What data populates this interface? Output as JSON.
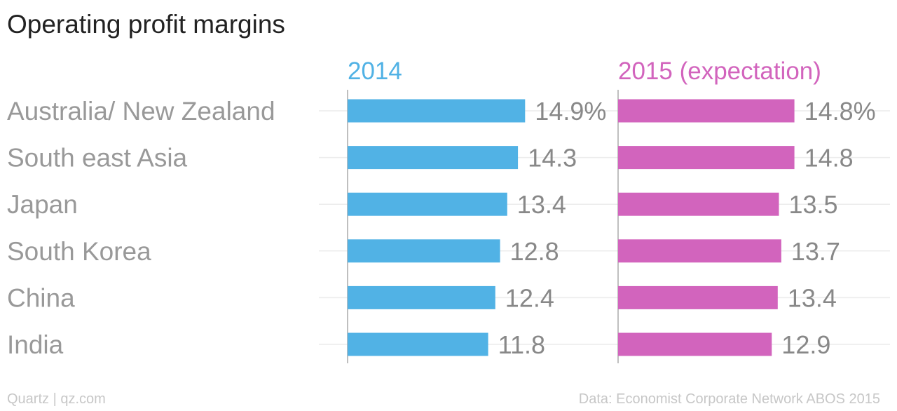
{
  "title": "Operating profit margins",
  "footer": {
    "credit": "Quartz | qz.com",
    "source": "Data: Economist Corporate Network ABOS 2015"
  },
  "colors": {
    "series_2014": "#51b2e5",
    "series_2015": "#d264bd",
    "category_text": "#999999",
    "value_text": "#888888",
    "gridline": "#ececec",
    "axis": "#aaaaaa"
  },
  "chart_data": {
    "type": "bar",
    "orientation": "horizontal",
    "title": "Operating profit margins",
    "categories": [
      "Australia/ New Zealand",
      "South east Asia",
      "Japan",
      "South Korea",
      "China",
      "India"
    ],
    "series": [
      {
        "name": "2014",
        "values": [
          14.9,
          14.3,
          13.4,
          12.8,
          12.4,
          11.8
        ],
        "labels": [
          "14.9%",
          "14.3",
          "13.4",
          "12.8",
          "12.4",
          "11.8"
        ]
      },
      {
        "name": "2015 (expectation)",
        "values": [
          14.8,
          14.8,
          13.5,
          13.7,
          13.4,
          12.9
        ],
        "labels": [
          "14.8%",
          "14.8",
          "13.5",
          "13.7",
          "13.4",
          "12.9"
        ]
      }
    ],
    "unit": "%",
    "xlim": [
      0,
      15
    ],
    "grid": true,
    "legend": "none"
  }
}
